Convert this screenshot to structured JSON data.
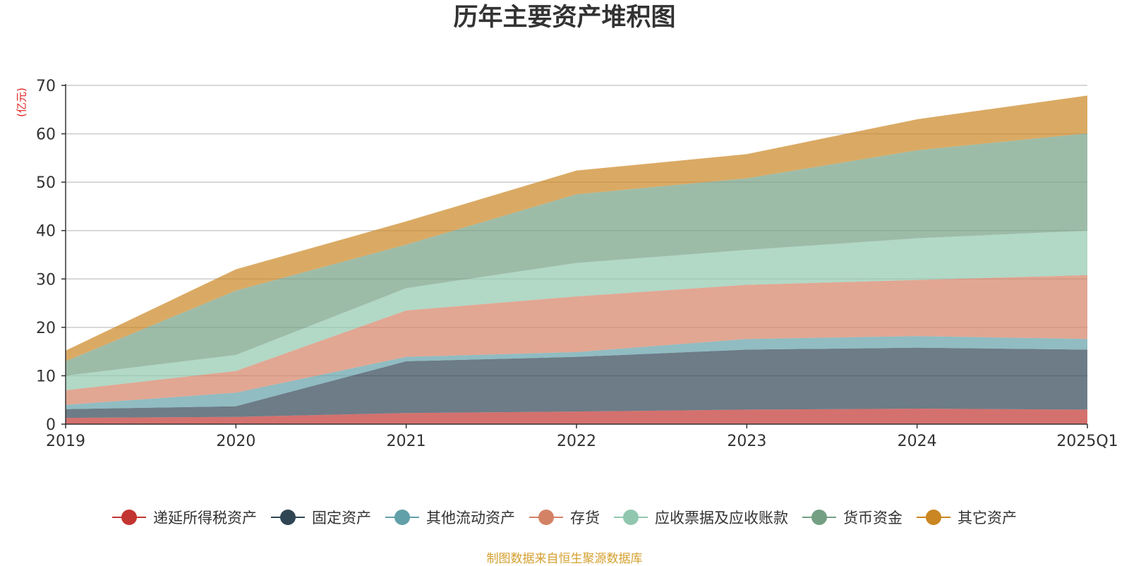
{
  "chart_data": {
    "type": "area",
    "stacked": true,
    "title": "历年主要资产堆积图",
    "ylabel": "(亿元)",
    "xlabel": "",
    "categories": [
      "2019",
      "2020",
      "2021",
      "2022",
      "2023",
      "2024",
      "2025Q1"
    ],
    "ylim": [
      0,
      70
    ],
    "yticks": [
      0,
      10,
      20,
      30,
      40,
      50,
      60,
      70
    ],
    "grid": true,
    "legend_position": "bottom",
    "series": [
      {
        "name": "递延所得税资产",
        "color": "#c23531",
        "values": [
          1.3,
          1.5,
          2.3,
          2.6,
          3.0,
          3.2,
          3.0
        ]
      },
      {
        "name": "固定资产",
        "color": "#2f4554",
        "values": [
          1.8,
          2.2,
          10.7,
          11.3,
          12.4,
          12.6,
          12.4
        ]
      },
      {
        "name": "其他流动资产",
        "color": "#61a0a8",
        "values": [
          0.9,
          2.8,
          0.9,
          1.0,
          2.2,
          2.4,
          2.2
        ]
      },
      {
        "name": "存货",
        "color": "#d48265",
        "values": [
          3.0,
          4.5,
          9.6,
          11.5,
          11.2,
          11.6,
          13.2
        ]
      },
      {
        "name": "应收票据及应收账款",
        "color": "#91c7ae",
        "values": [
          3.0,
          3.3,
          4.6,
          6.9,
          7.2,
          8.6,
          9.2
        ]
      },
      {
        "name": "货币资金",
        "color": "#749f83",
        "values": [
          3.0,
          13.3,
          9.0,
          14.2,
          14.8,
          18.2,
          20.1
        ]
      },
      {
        "name": "其它资产",
        "color": "#ca8622",
        "values": [
          2.2,
          4.4,
          4.8,
          4.9,
          5.0,
          6.4,
          7.8
        ]
      }
    ]
  },
  "source_note": "制图数据来自恒生聚源数据库"
}
